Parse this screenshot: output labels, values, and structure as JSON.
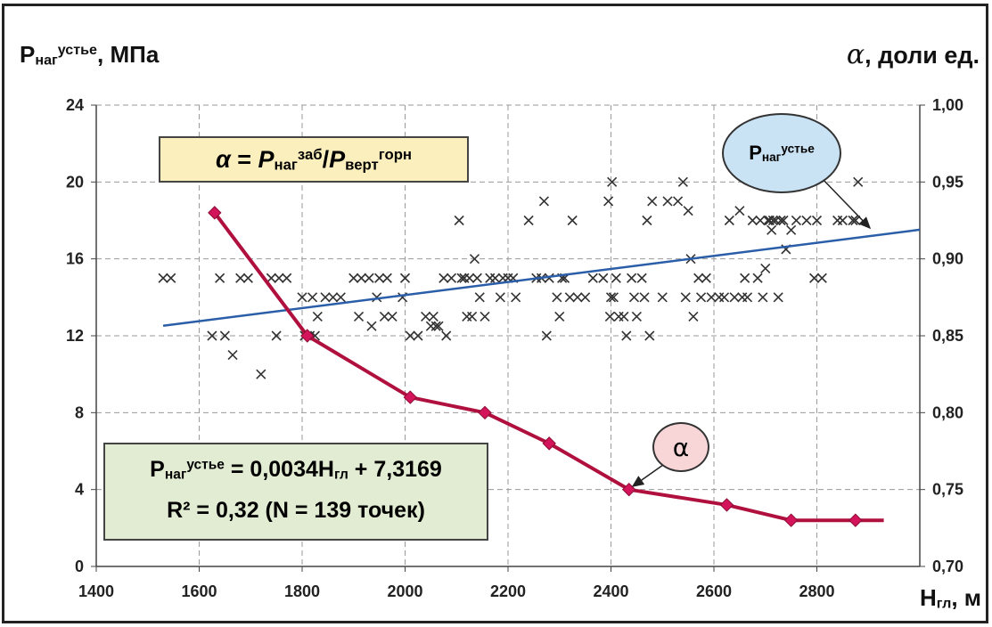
{
  "chart_data": {
    "type": "scatter",
    "x_axis": {
      "title_main": "H",
      "title_sub": "гл",
      "title_suffix": ", м",
      "range": [
        1400,
        3000
      ],
      "ticks": [
        "1400",
        "1600",
        "1800",
        "2000",
        "2200",
        "2400",
        "2600",
        "2800"
      ]
    },
    "y_axis_left": {
      "title_main": "P",
      "title_sub": "наг",
      "title_sup": "устье",
      "title_suffix": ", МПа",
      "range": [
        0,
        24
      ],
      "ticks": [
        "0",
        "4",
        "8",
        "12",
        "16",
        "20",
        "24"
      ]
    },
    "y_axis_right": {
      "title_symbol": "α",
      "title_suffix": ", доли ед.",
      "range": [
        0.7,
        1.0
      ],
      "ticks": [
        "0,70",
        "0,75",
        "0,80",
        "0,85",
        "0,90",
        "0,95",
        "1,00"
      ]
    },
    "grid": "horizontal and vertical dashed",
    "series": [
      {
        "kind": "scatter",
        "marker": "x",
        "color": "#333333",
        "points": [
          [
            1530,
            15
          ],
          [
            1545,
            15
          ],
          [
            1625,
            12
          ],
          [
            1640,
            15
          ],
          [
            1650,
            12
          ],
          [
            1665,
            11
          ],
          [
            1680,
            15
          ],
          [
            1695,
            15
          ],
          [
            1720,
            10
          ],
          [
            1740,
            15
          ],
          [
            1750,
            12
          ],
          [
            1755,
            15
          ],
          [
            1770,
            15
          ],
          [
            1800,
            14
          ],
          [
            1805,
            12
          ],
          [
            1815,
            12
          ],
          [
            1820,
            14
          ],
          [
            1825,
            12
          ],
          [
            1830,
            13
          ],
          [
            1845,
            14
          ],
          [
            1860,
            14
          ],
          [
            1875,
            14
          ],
          [
            1900,
            15
          ],
          [
            1910,
            13
          ],
          [
            1915,
            15
          ],
          [
            1930,
            15
          ],
          [
            1935,
            12.5
          ],
          [
            1945,
            14
          ],
          [
            1950,
            15
          ],
          [
            1960,
            13
          ],
          [
            1965,
            15
          ],
          [
            1975,
            13
          ],
          [
            1995,
            14
          ],
          [
            2000,
            15
          ],
          [
            2010,
            12
          ],
          [
            2025,
            12
          ],
          [
            2040,
            13
          ],
          [
            2050,
            12.5
          ],
          [
            2055,
            13
          ],
          [
            2060,
            12.5
          ],
          [
            2065,
            12.5
          ],
          [
            2075,
            15
          ],
          [
            2080,
            12
          ],
          [
            2090,
            15
          ],
          [
            2105,
            18
          ],
          [
            2110,
            15
          ],
          [
            2115,
            15
          ],
          [
            2120,
            13
          ],
          [
            2125,
            15
          ],
          [
            2130,
            13
          ],
          [
            2135,
            16
          ],
          [
            2140,
            15
          ],
          [
            2145,
            14
          ],
          [
            2155,
            13
          ],
          [
            2165,
            15
          ],
          [
            2175,
            15
          ],
          [
            2185,
            14
          ],
          [
            2190,
            15
          ],
          [
            2200,
            15
          ],
          [
            2210,
            15
          ],
          [
            2215,
            14
          ],
          [
            2240,
            18
          ],
          [
            2255,
            15
          ],
          [
            2265,
            15
          ],
          [
            2270,
            19
          ],
          [
            2275,
            12
          ],
          [
            2280,
            15
          ],
          [
            2295,
            14
          ],
          [
            2300,
            13
          ],
          [
            2305,
            15
          ],
          [
            2310,
            15
          ],
          [
            2320,
            14
          ],
          [
            2325,
            18
          ],
          [
            2335,
            14
          ],
          [
            2350,
            14
          ],
          [
            2365,
            15
          ],
          [
            2385,
            15
          ],
          [
            2395,
            19
          ],
          [
            2398,
            13
          ],
          [
            2400,
            14
          ],
          [
            2402,
            20
          ],
          [
            2405,
            14
          ],
          [
            2410,
            15
          ],
          [
            2415,
            13
          ],
          [
            2425,
            13
          ],
          [
            2430,
            12
          ],
          [
            2440,
            15
          ],
          [
            2445,
            14
          ],
          [
            2450,
            13
          ],
          [
            2460,
            15
          ],
          [
            2465,
            14
          ],
          [
            2470,
            18
          ],
          [
            2475,
            12
          ],
          [
            2480,
            19
          ],
          [
            2500,
            14
          ],
          [
            2510,
            19
          ],
          [
            2530,
            19
          ],
          [
            2540,
            20
          ],
          [
            2545,
            14
          ],
          [
            2550,
            18.5
          ],
          [
            2555,
            16
          ],
          [
            2560,
            13
          ],
          [
            2570,
            15
          ],
          [
            2575,
            14
          ],
          [
            2585,
            15
          ],
          [
            2595,
            14
          ],
          [
            2610,
            14
          ],
          [
            2620,
            14
          ],
          [
            2630,
            18
          ],
          [
            2640,
            14
          ],
          [
            2650,
            18.5
          ],
          [
            2655,
            14
          ],
          [
            2660,
            15
          ],
          [
            2665,
            14
          ],
          [
            2675,
            18
          ],
          [
            2685,
            15
          ],
          [
            2690,
            18
          ],
          [
            2695,
            14
          ],
          [
            2700,
            15.5
          ],
          [
            2705,
            18
          ],
          [
            2708,
            18
          ],
          [
            2712,
            17.5
          ],
          [
            2715,
            18
          ],
          [
            2720,
            18
          ],
          [
            2725,
            14
          ],
          [
            2730,
            18
          ],
          [
            2735,
            18
          ],
          [
            2740,
            16.5
          ],
          [
            2750,
            17.5
          ],
          [
            2760,
            18
          ],
          [
            2780,
            18
          ],
          [
            2795,
            15
          ],
          [
            2800,
            18
          ],
          [
            2810,
            15
          ],
          [
            2840,
            18
          ],
          [
            2850,
            18
          ],
          [
            2870,
            18
          ],
          [
            2875,
            18
          ],
          [
            2880,
            20
          ]
        ]
      },
      {
        "kind": "trendline",
        "color": "#2a5ea8",
        "slope": 0.0034,
        "intercept": 7.3169,
        "x_range": [
          1530,
          3000
        ]
      },
      {
        "kind": "line",
        "axis": "right",
        "marker": "diamond",
        "color": "#b0103e",
        "points": [
          [
            1630,
            0.93
          ],
          [
            1810,
            0.85
          ],
          [
            2010,
            0.81
          ],
          [
            2155,
            0.8
          ],
          [
            2280,
            0.78
          ],
          [
            2435,
            0.75
          ],
          [
            2625,
            0.74
          ],
          [
            2750,
            0.73
          ],
          [
            2875,
            0.73
          ],
          [
            2930,
            0.73
          ]
        ]
      }
    ]
  },
  "annotations": {
    "formula_alpha": "α",
    "formula_eq": " = ",
    "formula_p1": "P",
    "formula_p1_sub": "наг",
    "formula_p1_sup": "заб",
    "formula_slash": "/",
    "formula_p2": "P",
    "formula_p2_sub": "верт",
    "formula_p2_sup": "горн",
    "regression_p": "P",
    "regression_sub": "наг",
    "regression_sup": "устье",
    "regression_rest_a": " = 0,0034H",
    "regression_rest_sub": "гл",
    "regression_rest_b": " + 7,3169",
    "r2_line": "R² = 0,32  (N = 139 точек)",
    "bubble_p": "P",
    "bubble_p_sub": "наг",
    "bubble_p_sup": "устье",
    "bubble_alpha": "α"
  }
}
